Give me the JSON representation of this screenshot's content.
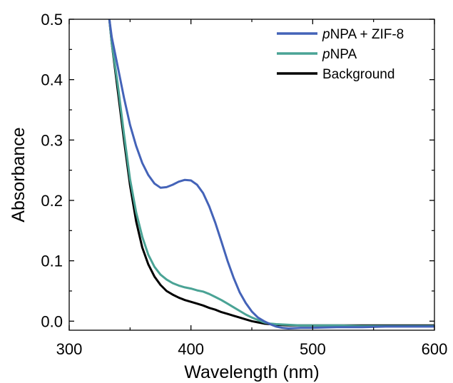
{
  "chart_data": {
    "type": "line",
    "xlabel": "Wavelength (nm)",
    "ylabel": "Absorbance",
    "xlim": [
      300,
      600
    ],
    "ylim": [
      -0.015,
      0.5
    ],
    "x_ticks": [
      300,
      400,
      500,
      600
    ],
    "x_tick_labels": [
      "300",
      "400",
      "500",
      "600"
    ],
    "y_ticks": [
      0.0,
      0.1,
      0.2,
      0.3,
      0.4,
      0.5
    ],
    "y_tick_labels": [
      "0.0",
      "0.1",
      "0.2",
      "0.3",
      "0.4",
      "0.5"
    ],
    "legend_position": "top-right",
    "grid": false,
    "series": [
      {
        "name": "pNPA + ZIF-8",
        "legend_prefix": "p",
        "legend_rest": "NPA + ZIF-8",
        "color": "#4463b8",
        "x": [
          333,
          335,
          340,
          345,
          350,
          355,
          360,
          365,
          370,
          375,
          380,
          385,
          390,
          395,
          400,
          405,
          410,
          415,
          420,
          425,
          430,
          435,
          440,
          445,
          450,
          455,
          460,
          465,
          470,
          475,
          480,
          490,
          500,
          520,
          540,
          560,
          580,
          600
        ],
        "y": [
          0.5,
          0.47,
          0.42,
          0.37,
          0.325,
          0.29,
          0.262,
          0.242,
          0.228,
          0.221,
          0.222,
          0.226,
          0.231,
          0.234,
          0.233,
          0.226,
          0.212,
          0.19,
          0.163,
          0.132,
          0.1,
          0.072,
          0.048,
          0.03,
          0.016,
          0.006,
          0.0,
          -0.005,
          -0.009,
          -0.011,
          -0.012,
          -0.011,
          -0.011,
          -0.01,
          -0.01,
          -0.009,
          -0.009,
          -0.009
        ]
      },
      {
        "name": "pNPA",
        "legend_prefix": "p",
        "legend_rest": "NPA",
        "color": "#4aa395",
        "x": [
          333,
          335,
          340,
          345,
          350,
          355,
          360,
          365,
          370,
          375,
          380,
          385,
          390,
          395,
          400,
          405,
          410,
          415,
          420,
          425,
          430,
          435,
          440,
          445,
          450,
          455,
          460,
          465,
          470,
          480,
          490,
          500,
          520,
          540,
          560,
          580,
          600
        ],
        "y": [
          0.5,
          0.46,
          0.39,
          0.31,
          0.235,
          0.18,
          0.14,
          0.11,
          0.09,
          0.077,
          0.069,
          0.063,
          0.059,
          0.056,
          0.054,
          0.051,
          0.049,
          0.045,
          0.04,
          0.035,
          0.029,
          0.023,
          0.017,
          0.011,
          0.006,
          0.002,
          -0.002,
          -0.004,
          -0.005,
          -0.006,
          -0.007,
          -0.007,
          -0.007,
          -0.008,
          -0.008,
          -0.008,
          -0.008
        ]
      },
      {
        "name": "Background",
        "legend_prefix": "",
        "legend_rest": "Background",
        "color": "#000000",
        "x": [
          333,
          335,
          340,
          345,
          350,
          355,
          360,
          365,
          370,
          375,
          380,
          385,
          390,
          395,
          400,
          405,
          410,
          415,
          420,
          425,
          430,
          435,
          440,
          445,
          450,
          455,
          460,
          465,
          470,
          480,
          490,
          500,
          520,
          540,
          560,
          580,
          600
        ],
        "y": [
          0.5,
          0.46,
          0.38,
          0.3,
          0.225,
          0.165,
          0.122,
          0.094,
          0.074,
          0.06,
          0.05,
          0.044,
          0.039,
          0.035,
          0.032,
          0.029,
          0.026,
          0.022,
          0.019,
          0.015,
          0.012,
          0.009,
          0.006,
          0.003,
          0.0,
          -0.002,
          -0.004,
          -0.005,
          -0.006,
          -0.007,
          -0.007,
          -0.007,
          -0.007,
          -0.007,
          -0.007,
          -0.007,
          -0.007
        ]
      }
    ]
  }
}
